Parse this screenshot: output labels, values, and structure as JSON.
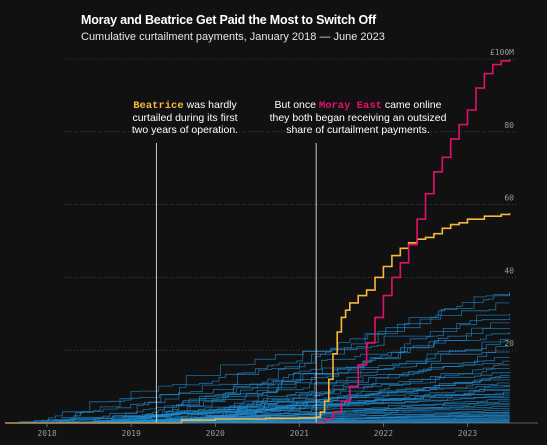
{
  "title": "Moray and Beatrice Get Paid the Most to Switch Off",
  "subtitle": "Cumulative curtailment payments, January 2018 — June 2023",
  "annotations": {
    "beatrice_name": "Beatrice",
    "beatrice_rest1": " was hardly",
    "beatrice_rest2": "curtailed during its first",
    "beatrice_rest3": "two years of operation.",
    "moray_pre": "But once ",
    "moray_name": "Moray East",
    "moray_rest1": " came online",
    "moray_rest2": "they both began receiving an outsized",
    "moray_rest3": "share of curtailment payments."
  },
  "colors": {
    "background": "#111111",
    "others": "#1f8fd6",
    "beatrice": "#f6b73c",
    "moray_east": "#e5106b",
    "grid": "#5a5a5a"
  },
  "chart_data": {
    "type": "line",
    "xlim": [
      2017.5,
      2023.6
    ],
    "ylim": [
      0,
      100
    ],
    "x_ticks": [
      2018,
      2019,
      2020,
      2021,
      2022,
      2023
    ],
    "x_tick_labels": [
      "2018",
      "2019",
      "2020",
      "2021",
      "2022",
      "2023"
    ],
    "y_ticks": [
      20,
      40,
      60,
      80,
      100
    ],
    "y_tick_labels": [
      "20",
      "40",
      "60",
      "80",
      "£100M"
    ],
    "grid": "horizontal",
    "reference_lines_x": [
      2019.3,
      2021.2
    ],
    "highlight_series": [
      {
        "name": "Beatrice",
        "color": "#f6b73c",
        "x": [
          2017.5,
          2019.3,
          2019.6,
          2020.0,
          2020.6,
          2021.0,
          2021.2,
          2021.25,
          2021.3,
          2021.35,
          2021.4,
          2021.45,
          2021.5,
          2021.55,
          2021.6,
          2021.7,
          2021.8,
          2021.9,
          2022.0,
          2022.1,
          2022.2,
          2022.3,
          2022.4,
          2022.5,
          2022.6,
          2022.7,
          2022.8,
          2022.9,
          2023.0,
          2023.2,
          2023.4,
          2023.5
        ],
        "y": [
          0,
          0,
          0.8,
          1.1,
          1.3,
          1.4,
          1.6,
          3,
          6,
          12,
          19,
          25,
          29,
          31,
          33,
          35,
          36.5,
          40,
          43,
          46,
          48,
          49.5,
          50.5,
          51,
          52,
          53.5,
          54.5,
          55,
          56,
          56.8,
          57.3,
          57.6
        ]
      },
      {
        "name": "Moray East",
        "color": "#e5106b",
        "x": [
          2021.2,
          2021.3,
          2021.4,
          2021.5,
          2021.6,
          2021.7,
          2021.8,
          2021.9,
          2022.0,
          2022.1,
          2022.2,
          2022.3,
          2022.4,
          2022.5,
          2022.6,
          2022.7,
          2022.8,
          2022.9,
          2023.0,
          2023.1,
          2023.2,
          2023.3,
          2023.4,
          2023.5
        ],
        "y": [
          0,
          1,
          3,
          6,
          10,
          16,
          22,
          29,
          35,
          40,
          44,
          49,
          56,
          63,
          69,
          73,
          78,
          82,
          86,
          92,
          96,
          98.5,
          99.5,
          100
        ]
      }
    ],
    "other_series_finals": [
      36,
      35.5,
      33,
      30,
      29,
      27.5,
      26,
      25,
      23,
      22.5,
      21,
      19.5,
      18,
      17,
      16,
      15,
      14,
      13,
      12.5,
      12,
      11,
      10.5,
      10,
      9.5,
      9,
      8.5,
      8,
      7.5,
      7,
      6.5,
      6,
      5.5,
      5,
      4.5,
      4,
      3.5,
      3,
      2.8,
      2.5,
      2.2,
      2,
      1.8,
      1.5,
      1.2,
      1,
      0.8,
      0.6,
      0.4,
      0.2,
      0.1
    ]
  }
}
